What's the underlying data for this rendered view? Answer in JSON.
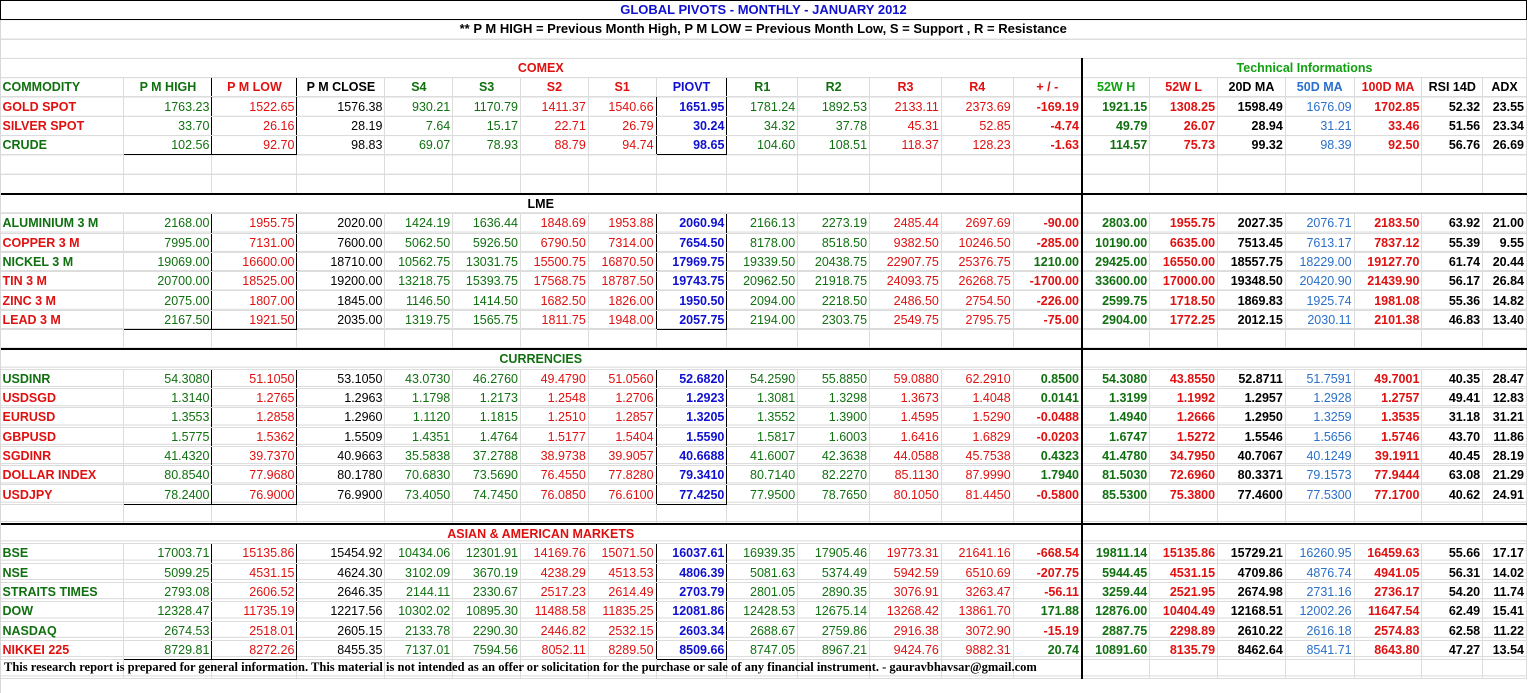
{
  "title": "GLOBAL PIVOTS - MONTHLY - JANUARY 2012",
  "subtitle": "** P M HIGH = Previous Month High, P M LOW = Previous Month Low, S  = Support  , R = Resistance",
  "sections": {
    "comex": "COMEX",
    "lme": "LME",
    "currencies": "CURRENCIES",
    "asian": "ASIAN & AMERICAN MARKETS",
    "technical": "Technical Informations"
  },
  "headers": [
    "COMMODITY",
    "P M HIGH",
    "P M LOW",
    "P M CLOSE",
    "S4",
    "S3",
    "S2",
    "S1",
    "PIOVT",
    "R1",
    "R2",
    "R3",
    "R4",
    "+ / -",
    "52W H",
    "52W L",
    "20D MA",
    "50D MA",
    "100D MA",
    "RSI 14D",
    "ADX"
  ],
  "comex_rows": [
    [
      "GOLD SPOT",
      "1763.23",
      "1522.65",
      "1576.38",
      "930.21",
      "1170.79",
      "1411.37",
      "1540.66",
      "1651.95",
      "1781.24",
      "1892.53",
      "2133.11",
      "2373.69",
      "-169.19",
      "1921.15",
      "1308.25",
      "1598.49",
      "1676.09",
      "1702.85",
      "52.32",
      "23.55"
    ],
    [
      "SILVER SPOT",
      "33.70",
      "26.16",
      "28.19",
      "7.64",
      "15.17",
      "22.71",
      "26.79",
      "30.24",
      "34.32",
      "37.78",
      "45.31",
      "52.85",
      "-4.74",
      "49.79",
      "26.07",
      "28.94",
      "31.21",
      "33.46",
      "51.56",
      "23.34"
    ],
    [
      "CRUDE",
      "102.56",
      "92.70",
      "98.83",
      "69.07",
      "78.93",
      "88.79",
      "94.74",
      "98.65",
      "104.60",
      "108.51",
      "118.37",
      "128.23",
      "-1.63",
      "114.57",
      "75.73",
      "99.32",
      "98.39",
      "92.50",
      "56.76",
      "26.69"
    ]
  ],
  "lme_rows": [
    [
      "ALUMINIUM 3 M",
      "2168.00",
      "1955.75",
      "2020.00",
      "1424.19",
      "1636.44",
      "1848.69",
      "1953.88",
      "2060.94",
      "2166.13",
      "2273.19",
      "2485.44",
      "2697.69",
      "-90.00",
      "2803.00",
      "1955.75",
      "2027.35",
      "2076.71",
      "2183.50",
      "63.92",
      "21.00"
    ],
    [
      "COPPER 3 M",
      "7995.00",
      "7131.00",
      "7600.00",
      "5062.50",
      "5926.50",
      "6790.50",
      "7314.00",
      "7654.50",
      "8178.00",
      "8518.50",
      "9382.50",
      "10246.50",
      "-285.00",
      "10190.00",
      "6635.00",
      "7513.45",
      "7613.17",
      "7837.12",
      "55.39",
      "9.55"
    ],
    [
      "NICKEL 3 M",
      "19069.00",
      "16600.00",
      "18710.00",
      "10562.75",
      "13031.75",
      "15500.75",
      "16870.50",
      "17969.75",
      "19339.50",
      "20438.75",
      "22907.75",
      "25376.75",
      "1210.00",
      "29425.00",
      "16550.00",
      "18557.75",
      "18229.00",
      "19127.70",
      "61.74",
      "20.44"
    ],
    [
      "TIN 3 M",
      "20700.00",
      "18525.00",
      "19200.00",
      "13218.75",
      "15393.75",
      "17568.75",
      "18787.50",
      "19743.75",
      "20962.50",
      "21918.75",
      "24093.75",
      "26268.75",
      "-1700.00",
      "33600.00",
      "17000.00",
      "19348.50",
      "20420.90",
      "21439.90",
      "56.17",
      "26.84"
    ],
    [
      "ZINC 3 M",
      "2075.00",
      "1807.00",
      "1845.00",
      "1146.50",
      "1414.50",
      "1682.50",
      "1826.00",
      "1950.50",
      "2094.00",
      "2218.50",
      "2486.50",
      "2754.50",
      "-226.00",
      "2599.75",
      "1718.50",
      "1869.83",
      "1925.74",
      "1981.08",
      "55.36",
      "14.82"
    ],
    [
      "LEAD 3 M",
      "2167.50",
      "1921.50",
      "2035.00",
      "1319.75",
      "1565.75",
      "1811.75",
      "1948.00",
      "2057.75",
      "2194.00",
      "2303.75",
      "2549.75",
      "2795.75",
      "-75.00",
      "2904.00",
      "1772.25",
      "2012.15",
      "2030.11",
      "2101.38",
      "46.83",
      "13.40"
    ]
  ],
  "currency_rows": [
    [
      "USDINR",
      "54.3080",
      "51.1050",
      "53.1050",
      "43.0730",
      "46.2760",
      "49.4790",
      "51.0560",
      "52.6820",
      "54.2590",
      "55.8850",
      "59.0880",
      "62.2910",
      "0.8500",
      "54.3080",
      "43.8550",
      "52.8711",
      "51.7591",
      "49.7001",
      "40.35",
      "28.47"
    ],
    [
      "USDSGD",
      "1.3140",
      "1.2765",
      "1.2963",
      "1.1798",
      "1.2173",
      "1.2548",
      "1.2706",
      "1.2923",
      "1.3081",
      "1.3298",
      "1.3673",
      "1.4048",
      "0.0141",
      "1.3199",
      "1.1992",
      "1.2957",
      "1.2928",
      "1.2757",
      "49.41",
      "12.83"
    ],
    [
      "EURUSD",
      "1.3553",
      "1.2858",
      "1.2960",
      "1.1120",
      "1.1815",
      "1.2510",
      "1.2857",
      "1.3205",
      "1.3552",
      "1.3900",
      "1.4595",
      "1.5290",
      "-0.0488",
      "1.4940",
      "1.2666",
      "1.2950",
      "1.3259",
      "1.3535",
      "31.18",
      "31.21"
    ],
    [
      "GBPUSD",
      "1.5775",
      "1.5362",
      "1.5509",
      "1.4351",
      "1.4764",
      "1.5177",
      "1.5404",
      "1.5590",
      "1.5817",
      "1.6003",
      "1.6416",
      "1.6829",
      "-0.0203",
      "1.6747",
      "1.5272",
      "1.5546",
      "1.5656",
      "1.5746",
      "43.70",
      "11.86"
    ],
    [
      "SGDINR",
      "41.4320",
      "39.7370",
      "40.9663",
      "35.5838",
      "37.2788",
      "38.9738",
      "39.9057",
      "40.6688",
      "41.6007",
      "42.3638",
      "44.0588",
      "45.7538",
      "0.4323",
      "41.4780",
      "34.7950",
      "40.7067",
      "40.1249",
      "39.1911",
      "40.45",
      "28.19"
    ],
    [
      "DOLLAR INDEX",
      "80.8540",
      "77.9680",
      "80.1780",
      "70.6830",
      "73.5690",
      "76.4550",
      "77.8280",
      "79.3410",
      "80.7140",
      "82.2270",
      "85.1130",
      "87.9990",
      "1.7940",
      "81.5030",
      "72.6960",
      "80.3371",
      "79.1573",
      "77.9444",
      "63.08",
      "21.29"
    ],
    [
      "USDJPY",
      "78.2400",
      "76.9000",
      "76.9900",
      "73.4050",
      "74.7450",
      "76.0850",
      "76.6100",
      "77.4250",
      "77.9500",
      "78.7650",
      "80.1050",
      "81.4450",
      "-0.5800",
      "85.5300",
      "75.3800",
      "77.4600",
      "77.5300",
      "77.1700",
      "40.62",
      "24.91"
    ]
  ],
  "market_rows": [
    [
      "BSE",
      "17003.71",
      "15135.86",
      "15454.92",
      "10434.06",
      "12301.91",
      "14169.76",
      "15071.50",
      "16037.61",
      "16939.35",
      "17905.46",
      "19773.31",
      "21641.16",
      "-668.54",
      "19811.14",
      "15135.86",
      "15729.21",
      "16260.95",
      "16459.63",
      "55.66",
      "17.17"
    ],
    [
      "NSE",
      "5099.25",
      "4531.15",
      "4624.30",
      "3102.09",
      "3670.19",
      "4238.29",
      "4513.53",
      "4806.39",
      "5081.63",
      "5374.49",
      "5942.59",
      "6510.69",
      "-207.75",
      "5944.45",
      "4531.15",
      "4709.86",
      "4876.74",
      "4941.05",
      "56.31",
      "14.02"
    ],
    [
      "STRAITS TIMES",
      "2793.08",
      "2606.52",
      "2646.35",
      "2144.11",
      "2330.67",
      "2517.23",
      "2614.49",
      "2703.79",
      "2801.05",
      "2890.35",
      "3076.91",
      "3263.47",
      "-56.11",
      "3259.44",
      "2521.95",
      "2674.98",
      "2731.16",
      "2736.17",
      "54.20",
      "11.74"
    ],
    [
      "DOW",
      "12328.47",
      "11735.19",
      "12217.56",
      "10302.02",
      "10895.30",
      "11488.58",
      "11835.25",
      "12081.86",
      "12428.53",
      "12675.14",
      "13268.42",
      "13861.70",
      "171.88",
      "12876.00",
      "10404.49",
      "12168.51",
      "12002.26",
      "11647.54",
      "62.49",
      "15.41"
    ],
    [
      "NASDAQ",
      "2674.53",
      "2518.01",
      "2605.15",
      "2133.78",
      "2290.30",
      "2446.82",
      "2532.15",
      "2603.34",
      "2688.67",
      "2759.86",
      "2916.38",
      "3072.90",
      "-15.19",
      "2887.75",
      "2298.89",
      "2610.22",
      "2616.18",
      "2574.83",
      "62.58",
      "11.22"
    ],
    [
      "NIKKEI 225",
      "8729.81",
      "8272.26",
      "8455.35",
      "7137.01",
      "7594.56",
      "8052.11",
      "8289.50",
      "8509.66",
      "8747.05",
      "8967.21",
      "9424.76",
      "9882.31",
      "20.74",
      "10891.60",
      "8135.79",
      "8462.64",
      "8541.71",
      "8643.80",
      "47.27",
      "13.54"
    ]
  ],
  "footer": "This research report is prepared for general information. This material is not intended as an offer or solicitation for the purchase or sale of any financial instrument. - gauravbhavsar@gmail.com",
  "colors": {
    "green": "#107010",
    "red": "#e01010",
    "blue": "#1010d0",
    "lightblue": "#2a6fc9"
  }
}
